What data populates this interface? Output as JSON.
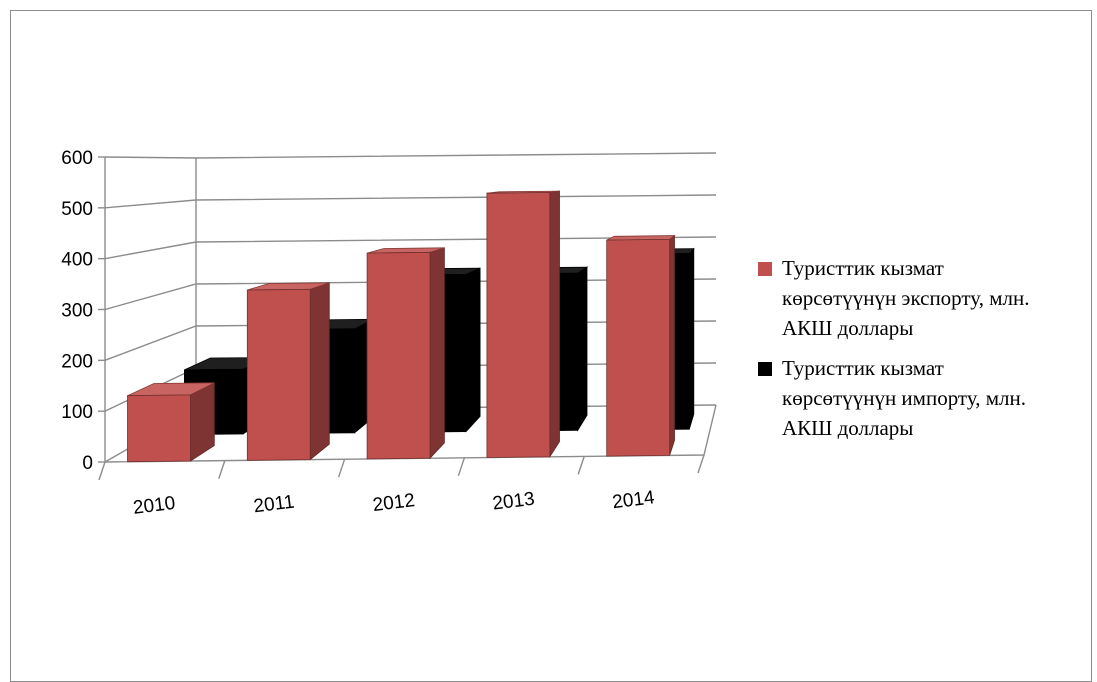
{
  "chart_data": {
    "type": "bar",
    "categories": [
      "2010",
      "2011",
      "2012",
      "2013",
      "2014"
    ],
    "series": [
      {
        "name": "Туристтик кызмат көрсөтүүнүн экспорту, млн. АКШ доллары",
        "values": [
          130,
          335,
          405,
          520,
          425
        ],
        "color": "#c0504d"
      },
      {
        "name": "Туристтик кызмат көрсөтүүнүн импорту, млн. АКШ доллары",
        "values": [
          140,
          225,
          340,
          340,
          380
        ],
        "color": "#000000"
      }
    ],
    "yticks": [
      "0",
      "100",
      "200",
      "300",
      "400",
      "500",
      "600"
    ],
    "ylim": [
      0,
      600
    ],
    "grid": true,
    "legend_position": "right",
    "title": "",
    "xlabel": "",
    "ylabel": ""
  }
}
